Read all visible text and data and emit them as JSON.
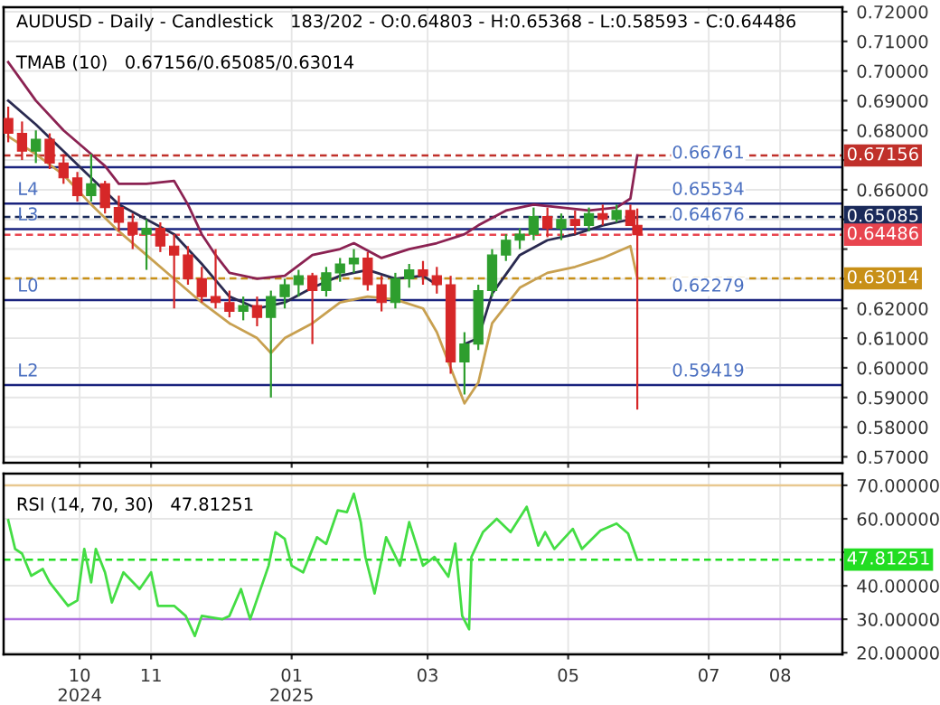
{
  "chart_data": [
    {
      "type": "candlestick",
      "title": "AUDUSD - Daily - Candlestick   183/202 - O:0.64803 - H:0.65368 - L:0.58593 - C:0.64486",
      "subtitle": "TMAB (10)   0.67156/0.65085/0.63014",
      "x": [
        "2024-08-31",
        "2024-09-06",
        "2024-09-12",
        "2024-09-18",
        "2024-09-24",
        "2024-09-30",
        "2024-10-06",
        "2024-10-12",
        "2024-10-18",
        "2024-10-24",
        "2024-10-30",
        "2024-11-05",
        "2024-11-11",
        "2024-11-17",
        "2024-11-23",
        "2024-11-29",
        "2024-12-05",
        "2024-12-11",
        "2024-12-17",
        "2024-12-23",
        "2024-12-29",
        "2025-01-04",
        "2025-01-10",
        "2025-01-16",
        "2025-01-22",
        "2025-01-28",
        "2025-02-03",
        "2025-02-09",
        "2025-02-15",
        "2025-02-21",
        "2025-02-27",
        "2025-03-05",
        "2025-03-11",
        "2025-03-17",
        "2025-03-23",
        "2025-03-29",
        "2025-04-04",
        "2025-04-10",
        "2025-04-16",
        "2025-04-22",
        "2025-04-28",
        "2025-05-04",
        "2025-05-10",
        "2025-05-16",
        "2025-05-22",
        "2025-05-28",
        "2025-05-31"
      ],
      "ohlc": [
        [
          0.684,
          0.688,
          0.676,
          0.679
        ],
        [
          0.679,
          0.683,
          0.67,
          0.673
        ],
        [
          0.673,
          0.68,
          0.669,
          0.677
        ],
        [
          0.677,
          0.679,
          0.667,
          0.669
        ],
        [
          0.669,
          0.672,
          0.662,
          0.664
        ],
        [
          0.664,
          0.666,
          0.656,
          0.658
        ],
        [
          0.658,
          0.672,
          0.656,
          0.662
        ],
        [
          0.662,
          0.663,
          0.652,
          0.654
        ],
        [
          0.654,
          0.658,
          0.646,
          0.649
        ],
        [
          0.649,
          0.652,
          0.64,
          0.645
        ],
        [
          0.645,
          0.65,
          0.633,
          0.647
        ],
        [
          0.647,
          0.649,
          0.639,
          0.641
        ],
        [
          0.641,
          0.645,
          0.62,
          0.638
        ],
        [
          0.638,
          0.641,
          0.628,
          0.63
        ],
        [
          0.63,
          0.634,
          0.622,
          0.624
        ],
        [
          0.624,
          0.64,
          0.62,
          0.622
        ],
        [
          0.622,
          0.626,
          0.617,
          0.619
        ],
        [
          0.619,
          0.624,
          0.616,
          0.621
        ],
        [
          0.621,
          0.624,
          0.614,
          0.617
        ],
        [
          0.617,
          0.626,
          0.59,
          0.624
        ],
        [
          0.624,
          0.63,
          0.62,
          0.628
        ],
        [
          0.628,
          0.633,
          0.624,
          0.631
        ],
        [
          0.631,
          0.632,
          0.608,
          0.626
        ],
        [
          0.626,
          0.634,
          0.624,
          0.632
        ],
        [
          0.632,
          0.637,
          0.629,
          0.635
        ],
        [
          0.635,
          0.64,
          0.632,
          0.637
        ],
        [
          0.637,
          0.639,
          0.626,
          0.628
        ],
        [
          0.628,
          0.631,
          0.619,
          0.622
        ],
        [
          0.622,
          0.632,
          0.62,
          0.63
        ],
        [
          0.63,
          0.635,
          0.627,
          0.633
        ],
        [
          0.633,
          0.636,
          0.628,
          0.631
        ],
        [
          0.631,
          0.634,
          0.625,
          0.628
        ],
        [
          0.628,
          0.631,
          0.598,
          0.602
        ],
        [
          0.602,
          0.612,
          0.591,
          0.608
        ],
        [
          0.608,
          0.628,
          0.606,
          0.626
        ],
        [
          0.626,
          0.64,
          0.624,
          0.638
        ],
        [
          0.638,
          0.645,
          0.636,
          0.643
        ],
        [
          0.643,
          0.647,
          0.64,
          0.645
        ],
        [
          0.645,
          0.654,
          0.643,
          0.651
        ],
        [
          0.651,
          0.654,
          0.644,
          0.647
        ],
        [
          0.647,
          0.652,
          0.643,
          0.65
        ],
        [
          0.65,
          0.653,
          0.645,
          0.648
        ],
        [
          0.648,
          0.654,
          0.646,
          0.652
        ],
        [
          0.652,
          0.655,
          0.648,
          0.65
        ],
        [
          0.65,
          0.655,
          0.649,
          0.653
        ],
        [
          0.653,
          0.655,
          0.648,
          0.648
        ],
        [
          0.64803,
          0.65368,
          0.58593,
          0.64486
        ]
      ],
      "colors": [
        "#d62728",
        "#d62728",
        "#2e9e2e",
        "#d62728",
        "#d62728",
        "#d62728",
        "#2e9e2e",
        "#d62728",
        "#d62728",
        "#d62728",
        "#2e9e2e",
        "#d62728",
        "#d62728",
        "#d62728",
        "#d62728",
        "#d62728",
        "#d62728",
        "#2e9e2e",
        "#d62728",
        "#2e9e2e",
        "#2e9e2e",
        "#2e9e2e",
        "#d62728",
        "#2e9e2e",
        "#2e9e2e",
        "#2e9e2e",
        "#d62728",
        "#d62728",
        "#2e9e2e",
        "#2e9e2e",
        "#d62728",
        "#d62728",
        "#d62728",
        "#2e9e2e",
        "#2e9e2e",
        "#2e9e2e",
        "#2e9e2e",
        "#2e9e2e",
        "#2e9e2e",
        "#d62728",
        "#2e9e2e",
        "#d62728",
        "#2e9e2e",
        "#d62728",
        "#2e9e2e",
        "#d62728",
        "#d62728"
      ],
      "series": [
        {
          "type": "line",
          "color": "#8b2252",
          "x": [
            "2024-08-31",
            "2024-09-12",
            "2024-09-24",
            "2024-10-06",
            "2024-10-12",
            "2024-10-18",
            "2024-10-30",
            "2024-11-11",
            "2024-11-17",
            "2024-11-23",
            "2024-11-29",
            "2024-12-05",
            "2024-12-17",
            "2024-12-29",
            "2025-01-10",
            "2025-01-22",
            "2025-01-28",
            "2025-02-09",
            "2025-02-21",
            "2025-03-05",
            "2025-03-17",
            "2025-03-23",
            "2025-04-04",
            "2025-04-16",
            "2025-04-28",
            "2025-05-10",
            "2025-05-22",
            "2025-05-28",
            "2025-05-31"
          ],
          "values": [
            0.703,
            0.69,
            0.68,
            0.672,
            0.668,
            0.662,
            0.662,
            0.663,
            0.655,
            0.645,
            0.638,
            0.632,
            0.63,
            0.631,
            0.638,
            0.64,
            0.642,
            0.637,
            0.64,
            0.642,
            0.645,
            0.648,
            0.653,
            0.655,
            0.654,
            0.653,
            0.654,
            0.657,
            0.67156
          ]
        },
        {
          "type": "line",
          "color": "#2a2a50",
          "x": [
            "2024-08-31",
            "2024-09-12",
            "2024-09-24",
            "2024-10-06",
            "2024-10-18",
            "2024-10-30",
            "2024-11-11",
            "2024-11-23",
            "2024-12-05",
            "2024-12-17",
            "2024-12-29",
            "2025-01-10",
            "2025-01-22",
            "2025-02-03",
            "2025-02-15",
            "2025-02-27",
            "2025-03-05",
            "2025-03-11",
            "2025-03-17",
            "2025-03-23",
            "2025-03-29",
            "2025-04-10",
            "2025-04-22",
            "2025-05-04",
            "2025-05-16",
            "2025-05-28",
            "2025-05-31"
          ],
          "values": [
            0.69,
            0.682,
            0.673,
            0.664,
            0.655,
            0.65,
            0.645,
            0.635,
            0.624,
            0.62,
            0.622,
            0.627,
            0.631,
            0.633,
            0.63,
            0.631,
            0.628,
            null,
            0.608,
            0.61,
            0.625,
            0.638,
            0.643,
            0.645,
            0.648,
            0.65,
            0.65085
          ]
        },
        {
          "type": "line",
          "color": "#c8a050",
          "x": [
            "2024-08-31",
            "2024-09-12",
            "2024-09-24",
            "2024-10-06",
            "2024-10-18",
            "2024-10-30",
            "2024-11-11",
            "2024-11-23",
            "2024-12-05",
            "2024-12-17",
            "2024-12-23",
            "2024-12-29",
            "2025-01-10",
            "2025-01-22",
            "2025-02-03",
            "2025-02-15",
            "2025-02-27",
            "2025-03-05",
            "2025-03-11",
            "2025-03-17",
            "2025-03-23",
            "2025-03-29",
            "2025-04-10",
            "2025-04-22",
            "2025-05-04",
            "2025-05-16",
            "2025-05-28",
            "2025-05-31"
          ],
          "values": [
            0.678,
            0.672,
            0.665,
            0.655,
            0.646,
            0.638,
            0.63,
            0.622,
            0.615,
            0.61,
            0.605,
            0.61,
            0.615,
            0.622,
            0.624,
            0.623,
            0.62,
            0.612,
            0.6,
            0.588,
            0.595,
            0.615,
            0.627,
            0.632,
            0.634,
            0.637,
            0.641,
            0.63014
          ]
        }
      ],
      "xlim": [
        "2024-08-29",
        "2025-08-28"
      ],
      "xticks": [
        "2024-10-01",
        "2024-11-01",
        "2025-01-01",
        "2025-03-01",
        "2025-05-01",
        "2025-07-01",
        "2025-08-01"
      ],
      "ylim": [
        0.568,
        0.7215
      ],
      "yticks": [
        {
          "value": 0.57,
          "label": "0.57000"
        },
        {
          "value": 0.58,
          "label": "0.58000"
        },
        {
          "value": 0.59,
          "label": "0.59000"
        },
        {
          "value": 0.6,
          "label": "0.60000"
        },
        {
          "value": 0.61,
          "label": "0.61000"
        },
        {
          "value": 0.62,
          "label": "0.62000"
        },
        {
          "value": 0.63,
          "label": null
        },
        {
          "value": 0.64,
          "label": null
        },
        {
          "value": 0.65,
          "label": null
        },
        {
          "value": 0.66,
          "label": "0.66000"
        },
        {
          "value": 0.67,
          "label": null
        },
        {
          "value": 0.68,
          "label": "0.68000"
        },
        {
          "value": 0.69,
          "label": "0.69000"
        },
        {
          "value": 0.7,
          "label": "0.70000"
        },
        {
          "value": 0.71,
          "label": "0.71000"
        },
        {
          "value": 0.72,
          "label": "0.72000"
        }
      ],
      "ref_lines": [
        {
          "axis": "y",
          "value": 0.66761,
          "label": "0.66761",
          "color": "#1a237e",
          "line_style": "solid"
        },
        {
          "axis": "y",
          "value": 0.65534,
          "label": "0.65534",
          "color": "#1a237e",
          "line_style": "solid"
        },
        {
          "axis": "y",
          "value": 0.64676,
          "label": "0.64676",
          "color": "#1a237e",
          "line_style": "solid"
        },
        {
          "axis": "y",
          "value": 0.62279,
          "label": "0.62279",
          "color": "#1a237e",
          "line_style": "solid"
        },
        {
          "axis": "y",
          "value": 0.59419,
          "label": "0.59419",
          "color": "#1a237e",
          "line_style": "solid"
        },
        {
          "axis": "y",
          "value": 0.67156,
          "label": "0.67156",
          "color": "#c0302a",
          "line_style": "dashed"
        },
        {
          "axis": "y",
          "value": 0.65085,
          "label": "0.65085",
          "color": "#1a2a5a",
          "line_style": "dashed"
        },
        {
          "axis": "y",
          "value": 0.64486,
          "label": "0.64486",
          "color": "#e8454f",
          "line_style": "dashed"
        },
        {
          "axis": "y",
          "value": 0.63014,
          "label": "0.63014",
          "color": "#c89018",
          "line_style": "dashed"
        }
      ],
      "annotations": [
        {
          "text": "L4",
          "x": "2024-09-04",
          "y": 0.65534
        },
        {
          "text": "L3",
          "x": "2024-09-04",
          "y": 0.64676
        },
        {
          "text": "L0",
          "x": "2024-09-04",
          "y": 0.62279
        },
        {
          "text": "L2",
          "x": "2024-09-04",
          "y": 0.59419
        }
      ],
      "grid": true,
      "tick_labels": "y"
    },
    {
      "type": "line",
      "title": "RSI (14, 70, 30)   47.81251",
      "series": [
        {
          "color": "#44dd44",
          "x": [
            "2024-08-31",
            "2024-09-03",
            "2024-09-06",
            "2024-09-10",
            "2024-09-15",
            "2024-09-18",
            "2024-09-26",
            "2024-09-30",
            "2024-10-03",
            "2024-10-06",
            "2024-10-08",
            "2024-10-12",
            "2024-10-15",
            "2024-10-20",
            "2024-10-27",
            "2024-11-01",
            "2024-11-04",
            "2024-11-11",
            "2024-11-16",
            "2024-11-20",
            "2024-11-23",
            "2024-12-02",
            "2024-12-05",
            "2024-12-10",
            "2024-12-14",
            "2024-12-22",
            "2024-12-25",
            "2024-12-29",
            "2025-01-01",
            "2025-01-06",
            "2025-01-12",
            "2025-01-16",
            "2025-01-21",
            "2025-01-25",
            "2025-01-28",
            "2025-01-31",
            "2025-02-02",
            "2025-02-06",
            "2025-02-11",
            "2025-02-17",
            "2025-02-21",
            "2025-02-27",
            "2025-03-04",
            "2025-03-10",
            "2025-03-13",
            "2025-03-16",
            "2025-03-19",
            "2025-03-20",
            "2025-03-25",
            "2025-03-31",
            "2025-04-06",
            "2025-04-13",
            "2025-04-18",
            "2025-04-21",
            "2025-04-25",
            "2025-05-03",
            "2025-05-07",
            "2025-05-15",
            "2025-05-22",
            "2025-05-27",
            "2025-05-31"
          ],
          "values": [
            59.6,
            51,
            49.6,
            43,
            45,
            41,
            34,
            35.6,
            51,
            41,
            51,
            44,
            35,
            44,
            39,
            44,
            34,
            34,
            31,
            25,
            31,
            30,
            31,
            39,
            30,
            46,
            56,
            54,
            46,
            44,
            54.5,
            52.5,
            62.5,
            62,
            67.5,
            59,
            48.6,
            37.7,
            54.5,
            46,
            59,
            46,
            48.6,
            42.7,
            52.6,
            31,
            27,
            48.6,
            56,
            60,
            56,
            63.6,
            52,
            56,
            51,
            57,
            51,
            56.5,
            58.6,
            55.6,
            47.81251
          ]
        }
      ],
      "xlim": [
        "2024-08-29",
        "2025-08-28"
      ],
      "xticks": [
        {
          "value": "2024-10-01",
          "label": "10\n2024"
        },
        {
          "value": "2024-11-01",
          "label": "11"
        },
        {
          "value": "2025-01-01",
          "label": "01\n2025"
        },
        {
          "value": "2025-03-01",
          "label": "03"
        },
        {
          "value": "2025-05-01",
          "label": "05"
        },
        {
          "value": "2025-07-01",
          "label": "07"
        },
        {
          "value": "2025-08-01",
          "label": "08"
        }
      ],
      "ylim": [
        19.5,
        73.5
      ],
      "yticks": [
        {
          "value": 20,
          "label": "20.00000"
        },
        {
          "value": 30,
          "label": "30.00000"
        },
        {
          "value": 40,
          "label": "40.00000"
        },
        {
          "value": 50,
          "label": null
        },
        {
          "value": 60,
          "label": "60.00000"
        },
        {
          "value": 70,
          "label": "70.00000"
        }
      ],
      "ref_lines": [
        {
          "axis": "y",
          "value": 70,
          "label": null,
          "color": "#e8c890",
          "line_style": "solid"
        },
        {
          "axis": "y",
          "value": 30,
          "label": null,
          "color": "#b070e0",
          "line_style": "solid"
        },
        {
          "axis": "y",
          "value": 47.81251,
          "label": "47.81251",
          "color": "#22dd22",
          "line_style": "dashed"
        }
      ],
      "grid": true
    }
  ]
}
